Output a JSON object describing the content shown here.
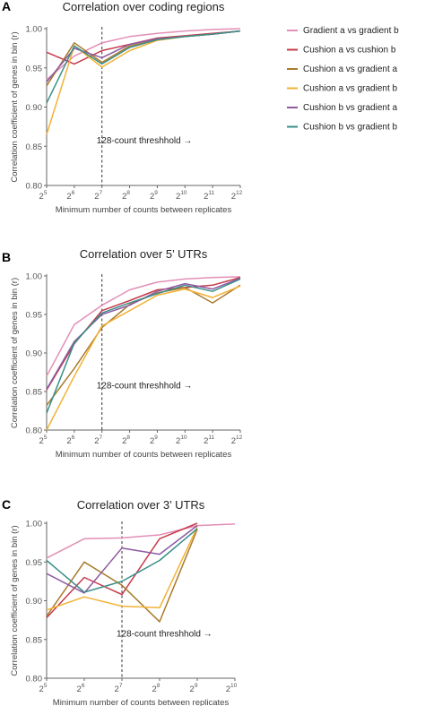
{
  "legend": {
    "entries": [
      {
        "name": "Gradient a vs gradient b",
        "color": "#e38fb6"
      },
      {
        "name": "Cushion a vs cushion b",
        "color": "#c63a4a"
      },
      {
        "name": "Cushion a vs gradient a",
        "color": "#a97a2c"
      },
      {
        "name": "Cushion a vs gradient b",
        "color": "#f2b134"
      },
      {
        "name": "Cushion b vs gradient a",
        "color": "#8e5aa2"
      },
      {
        "name": "Cushion b vs gradient b",
        "color": "#3a8f8a"
      }
    ]
  },
  "chart_data": [
    {
      "type": "line",
      "panel": "A",
      "title": "Correlation over coding regions",
      "xlabel": "Minimum number of counts between replicates",
      "ylabel": "Correlation coefficient of genes in bin (r)",
      "x_scale": "log2",
      "x": [
        5,
        6,
        7,
        8,
        9,
        10,
        11,
        12
      ],
      "x_ticks": [
        "5",
        "6",
        "7",
        "8",
        "9",
        "10",
        "11",
        "12"
      ],
      "ylim": [
        0.8,
        1.0
      ],
      "y_ticks": [
        "0.80",
        "0.85",
        "0.90",
        "0.95",
        "1.00"
      ],
      "threshold": {
        "x": 7,
        "label": "128-count threshhold →"
      },
      "series": [
        {
          "name": "Gradient a vs gradient b",
          "values": [
            0.935,
            0.965,
            0.982,
            0.99,
            0.994,
            0.997,
            0.999,
            1.0
          ]
        },
        {
          "name": "Cushion a vs cushion b",
          "values": [
            0.97,
            0.955,
            0.972,
            0.98,
            0.988,
            0.991,
            0.994,
            0.997
          ]
        },
        {
          "name": "Cushion a vs gradient a",
          "values": [
            0.927,
            0.982,
            0.957,
            0.978,
            0.986,
            0.99,
            0.993,
            0.997
          ]
        },
        {
          "name": "Cushion a vs gradient b",
          "values": [
            0.865,
            0.978,
            0.951,
            0.972,
            0.985,
            0.99,
            0.993,
            0.997
          ]
        },
        {
          "name": "Cushion b vs gradient a",
          "values": [
            0.932,
            0.975,
            0.963,
            0.98,
            0.987,
            0.99,
            0.993,
            0.997
          ]
        },
        {
          "name": "Cushion b vs gradient b",
          "values": [
            0.905,
            0.978,
            0.955,
            0.976,
            0.986,
            0.99,
            0.993,
            0.997
          ]
        }
      ]
    },
    {
      "type": "line",
      "panel": "B",
      "title": "Correlation over 5’ UTRs",
      "xlabel": "Minimum number of counts between replicates",
      "ylabel": "Correlation coefficient of genes in bin (r)",
      "x_scale": "log2",
      "x": [
        5,
        6,
        7,
        8,
        9,
        10,
        11,
        12
      ],
      "x_ticks": [
        "5",
        "6",
        "7",
        "8",
        "9",
        "10",
        "11",
        "12"
      ],
      "ylim": [
        0.8,
        1.0
      ],
      "y_ticks": [
        "0.80",
        "0.85",
        "0.90",
        "0.95",
        "1.00"
      ],
      "threshold": {
        "x": 7,
        "label": "128-count threshhold →"
      },
      "series": [
        {
          "name": "Gradient a vs gradient b",
          "values": [
            0.87,
            0.937,
            0.962,
            0.982,
            0.992,
            0.996,
            0.998,
            0.999
          ]
        },
        {
          "name": "Cushion a vs cushion b",
          "values": [
            0.852,
            0.912,
            0.955,
            0.968,
            0.982,
            0.985,
            0.988,
            0.998
          ]
        },
        {
          "name": "Cushion a vs gradient a",
          "values": [
            0.832,
            0.88,
            0.933,
            0.963,
            0.978,
            0.985,
            0.965,
            0.988
          ]
        },
        {
          "name": "Cushion a vs gradient b",
          "values": [
            0.8,
            0.87,
            0.935,
            0.955,
            0.975,
            0.983,
            0.972,
            0.987
          ]
        },
        {
          "name": "Cushion b vs gradient a",
          "values": [
            0.853,
            0.915,
            0.95,
            0.962,
            0.98,
            0.99,
            0.983,
            0.997
          ]
        },
        {
          "name": "Cushion b vs gradient b",
          "values": [
            0.822,
            0.913,
            0.952,
            0.965,
            0.977,
            0.988,
            0.98,
            0.996
          ]
        }
      ]
    },
    {
      "type": "line",
      "panel": "C",
      "title": "Correlation over 3’ UTRs",
      "xlabel": "Minimum number of counts between replicates",
      "ylabel": "Correlation coefficient of genes in bin (r)",
      "x_scale": "log2",
      "x": [
        5,
        6,
        7,
        8,
        9,
        10
      ],
      "x_ticks": [
        "5",
        "6",
        "7",
        "8",
        "9",
        "10"
      ],
      "ylim": [
        0.8,
        1.0
      ],
      "y_ticks": [
        "0.80",
        "0.85",
        "0.90",
        "0.95",
        "1.00"
      ],
      "threshold": {
        "x": 7,
        "label": "128-count threshhold →"
      },
      "series": [
        {
          "name": "Gradient a vs gradient b",
          "x": [
            5,
            6,
            7,
            8,
            9,
            10
          ],
          "values": [
            0.955,
            0.98,
            0.981,
            0.985,
            0.997,
            0.999
          ]
        },
        {
          "name": "Cushion a vs cushion b",
          "x": [
            5,
            6,
            7,
            8,
            9
          ],
          "values": [
            0.878,
            0.93,
            0.908,
            0.98,
            1.0
          ]
        },
        {
          "name": "Cushion a vs gradient a",
          "x": [
            5,
            6,
            7,
            8,
            9
          ],
          "values": [
            0.88,
            0.95,
            0.92,
            0.873,
            0.992
          ]
        },
        {
          "name": "Cushion a vs gradient b",
          "x": [
            5,
            6,
            7,
            8,
            9
          ],
          "values": [
            0.888,
            0.905,
            0.893,
            0.891,
            0.995
          ]
        },
        {
          "name": "Cushion b vs gradient a",
          "x": [
            5,
            6,
            7,
            8,
            9
          ],
          "values": [
            0.935,
            0.91,
            0.968,
            0.96,
            0.997
          ]
        },
        {
          "name": "Cushion b vs gradient b",
          "x": [
            5,
            6,
            7,
            8,
            9
          ],
          "values": [
            0.952,
            0.911,
            0.925,
            0.952,
            0.993
          ]
        }
      ]
    }
  ]
}
